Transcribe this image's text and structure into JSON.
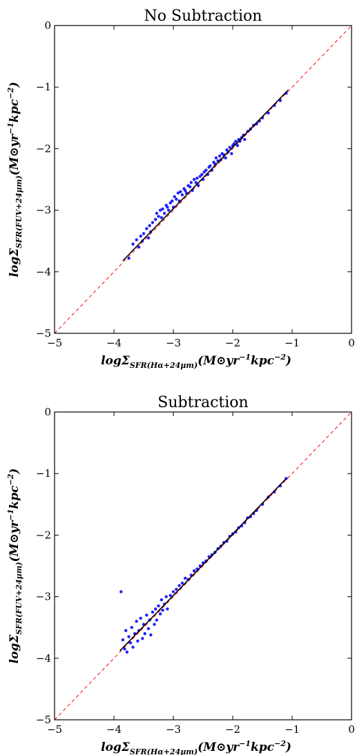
{
  "chart_data": [
    {
      "type": "scatter",
      "title": "No Subtraction",
      "xlabel": "logΣSFR(Hα+24μm)(M⊙yr−1kpc−2)",
      "ylabel": "logΣSFR(FUV+24μm)(M⊙yr−1kpc−2)",
      "xlim": [
        -5,
        0
      ],
      "ylim": [
        -5,
        0
      ],
      "xticks": [
        "−5",
        "−4",
        "−3",
        "−2",
        "−1",
        "0"
      ],
      "yticks": [
        "−5",
        "−4",
        "−3",
        "−2",
        "−1",
        "0"
      ],
      "grid": false,
      "colors": {
        "points": "#1f1fff",
        "fit": "#000000",
        "one_to_one": "#ff0000"
      },
      "fit_line": {
        "x": [
          -3.85,
          -1.07
        ],
        "y": [
          -3.82,
          -1.05
        ]
      },
      "one_to_one": {
        "x": [
          -5,
          0
        ],
        "y": [
          -5,
          0
        ]
      },
      "series": [
        {
          "x": [
            -3.75,
            -3.68,
            -3.62,
            -3.58,
            -3.55,
            -3.52,
            -3.5,
            -3.45,
            -3.42,
            -3.4,
            -3.38,
            -3.35,
            -3.3,
            -3.28,
            -3.25,
            -3.22,
            -3.2,
            -3.18,
            -3.15,
            -3.12,
            -3.1,
            -3.08,
            -3.05,
            -3.02,
            -3.0,
            -2.98,
            -2.95,
            -2.92,
            -2.9,
            -2.88,
            -2.85,
            -2.82,
            -2.8,
            -2.78,
            -2.75,
            -2.72,
            -2.7,
            -2.68,
            -2.65,
            -2.62,
            -2.6,
            -2.58,
            -2.55,
            -2.52,
            -2.5,
            -2.48,
            -2.45,
            -2.42,
            -2.4,
            -2.38,
            -2.35,
            -2.32,
            -2.3,
            -2.28,
            -2.25,
            -2.22,
            -2.2,
            -2.18,
            -2.15,
            -2.12,
            -2.1,
            -2.08,
            -2.05,
            -2.02,
            -2.0,
            -1.98,
            -1.95,
            -1.92,
            -1.9,
            -1.88,
            -1.85,
            -1.82,
            -1.8,
            -1.75,
            -1.7,
            -1.65,
            -1.6,
            -1.55,
            -1.5,
            -1.4,
            -1.3,
            -1.2,
            -1.1
          ],
          "y": [
            -3.78,
            -3.55,
            -3.48,
            -3.6,
            -3.42,
            -3.5,
            -3.38,
            -3.3,
            -3.45,
            -3.25,
            -3.35,
            -3.2,
            -3.15,
            -3.05,
            -3.1,
            -3.0,
            -3.12,
            -2.98,
            -3.05,
            -2.92,
            -2.95,
            -3.0,
            -2.88,
            -2.85,
            -2.95,
            -2.78,
            -2.82,
            -2.72,
            -2.85,
            -2.7,
            -2.75,
            -2.65,
            -2.68,
            -2.72,
            -2.6,
            -2.62,
            -2.55,
            -2.68,
            -2.5,
            -2.55,
            -2.48,
            -2.6,
            -2.45,
            -2.42,
            -2.5,
            -2.38,
            -2.35,
            -2.42,
            -2.3,
            -2.28,
            -2.35,
            -2.22,
            -2.25,
            -2.15,
            -2.2,
            -2.12,
            -2.18,
            -2.08,
            -2.1,
            -2.15,
            -2.02,
            -2.05,
            -1.98,
            -2.08,
            -1.95,
            -1.92,
            -1.88,
            -1.95,
            -1.85,
            -1.88,
            -1.82,
            -1.78,
            -1.85,
            -1.72,
            -1.68,
            -1.62,
            -1.6,
            -1.55,
            -1.5,
            -1.42,
            -1.3,
            -1.22,
            -1.1
          ]
        }
      ]
    },
    {
      "type": "scatter",
      "title": "Subtraction",
      "xlabel": "logΣSFR(Hα+24μm)(M⊙yr−1kpc−2)",
      "ylabel": "logΣSFR(FUV+24μm)(M⊙yr−1kpc−2)",
      "xlim": [
        -5,
        0
      ],
      "ylim": [
        -5,
        0
      ],
      "xticks": [
        "−5",
        "−4",
        "−3",
        "−2",
        "−1",
        "0"
      ],
      "yticks": [
        "−5",
        "−4",
        "−3",
        "−2",
        "−1",
        "0"
      ],
      "grid": false,
      "colors": {
        "points": "#1f1fff",
        "fit": "#000000",
        "one_to_one": "#ff0000"
      },
      "fit_line": {
        "x": [
          -3.9,
          -1.1
        ],
        "y": [
          -3.88,
          -1.08
        ]
      },
      "one_to_one": {
        "x": [
          -5,
          0
        ],
        "y": [
          -5,
          0
        ]
      },
      "series": [
        {
          "x": [
            -3.88,
            -3.85,
            -3.82,
            -3.8,
            -3.78,
            -3.75,
            -3.72,
            -3.7,
            -3.68,
            -3.65,
            -3.62,
            -3.6,
            -3.58,
            -3.55,
            -3.52,
            -3.5,
            -3.48,
            -3.45,
            -3.42,
            -3.4,
            -3.38,
            -3.35,
            -3.32,
            -3.3,
            -3.28,
            -3.25,
            -3.22,
            -3.2,
            -3.18,
            -3.15,
            -3.12,
            -3.1,
            -3.05,
            -3.0,
            -2.95,
            -2.9,
            -2.85,
            -2.8,
            -2.75,
            -2.7,
            -2.65,
            -2.6,
            -2.55,
            -2.5,
            -2.45,
            -2.4,
            -2.35,
            -2.3,
            -2.25,
            -2.2,
            -2.15,
            -2.1,
            -2.05,
            -2.0,
            -1.95,
            -1.9,
            -1.85,
            -1.8,
            -1.75,
            -1.7,
            -1.65,
            -1.6,
            -1.5,
            -1.4,
            -1.3,
            -1.2,
            -1.1
          ],
          "y": [
            -2.92,
            -3.7,
            -3.85,
            -3.55,
            -3.9,
            -3.65,
            -3.75,
            -3.5,
            -3.82,
            -3.6,
            -3.4,
            -3.72,
            -3.55,
            -3.35,
            -3.68,
            -3.45,
            -3.6,
            -3.3,
            -3.52,
            -3.38,
            -3.62,
            -3.25,
            -3.45,
            -3.2,
            -3.38,
            -3.15,
            -3.28,
            -3.05,
            -3.22,
            -3.12,
            -3.0,
            -3.2,
            -2.98,
            -2.92,
            -2.88,
            -2.82,
            -2.78,
            -2.7,
            -2.72,
            -2.65,
            -2.58,
            -2.55,
            -2.5,
            -2.45,
            -2.42,
            -2.35,
            -2.32,
            -2.28,
            -2.22,
            -2.18,
            -2.12,
            -2.1,
            -2.02,
            -1.98,
            -1.95,
            -1.88,
            -1.85,
            -1.8,
            -1.72,
            -1.7,
            -1.65,
            -1.6,
            -1.5,
            -1.38,
            -1.3,
            -1.2,
            -1.08
          ]
        }
      ]
    }
  ]
}
